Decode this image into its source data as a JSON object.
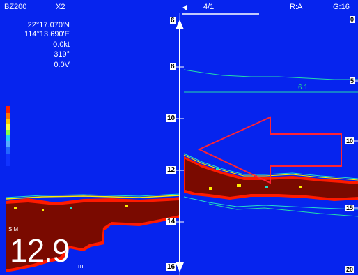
{
  "header": {
    "model": "BZ200",
    "zoom": "X2",
    "page": "4/1",
    "range_mode": "R:A",
    "gain": "G:16"
  },
  "position": {
    "lat": "22°17.070'N",
    "lon": "114°13.690'E",
    "speed": "0.0kt",
    "heading": "319°",
    "voltage": "0.0V"
  },
  "depth": {
    "value": "12.9",
    "unit": "m",
    "mode": "SIM"
  },
  "zoom_scale": {
    "ticks": [
      "6",
      "8",
      "10",
      "12",
      "14",
      "16"
    ]
  },
  "main_scale": {
    "ticks": [
      "0",
      "5",
      "10",
      "15",
      "20"
    ]
  },
  "alarm_line": {
    "label": "6.1"
  },
  "colors": {
    "background": "#0624ee",
    "bottom_echo": "#7a0a00",
    "echo_edge_red": "#ff1a00",
    "echo_edge_yellow": "#ffee00",
    "echo_edge_cyan": "#22ddcc",
    "arrow_outline": "#ff2233",
    "zoom_bar": "#ffffff"
  },
  "icons": {
    "page_arrow": "left-arrow-icon",
    "zoom_bar": "double-headed-arrow-icon",
    "annotation": "large-left-arrow-icon"
  }
}
